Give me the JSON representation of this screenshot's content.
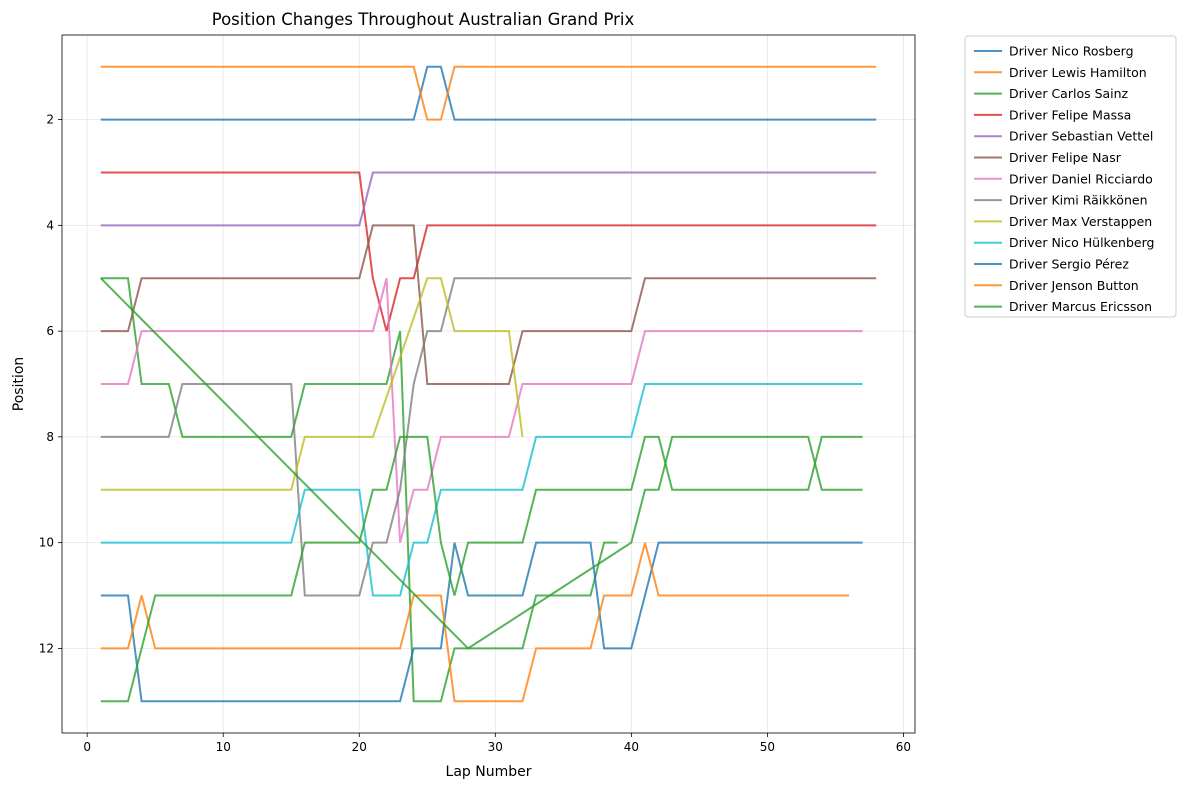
{
  "chart_data": {
    "type": "line",
    "title": "Position Changes Throughout Australian Grand Prix",
    "xlabel": "Lap Number",
    "ylabel": "Position",
    "xlim": [
      -1.85,
      60.85
    ],
    "ylim": [
      13.6,
      0.4
    ],
    "y_inverted": true,
    "xticks": [
      0,
      10,
      20,
      30,
      40,
      50,
      60
    ],
    "yticks": [
      2,
      4,
      6,
      8,
      10,
      12
    ],
    "grid": true,
    "legend_position": "outside-right",
    "series": [
      {
        "name": "Driver Nico Rosberg",
        "color": "#1f77b4",
        "points": [
          [
            1,
            2
          ],
          [
            24,
            2
          ],
          [
            25,
            1
          ],
          [
            26,
            1
          ],
          [
            27,
            2
          ],
          [
            58,
            2
          ]
        ]
      },
      {
        "name": "Driver Lewis Hamilton",
        "color": "#ff7f0e",
        "points": [
          [
            1,
            1
          ],
          [
            24,
            1
          ],
          [
            25,
            2
          ],
          [
            26,
            2
          ],
          [
            27,
            1
          ],
          [
            58,
            1
          ]
        ]
      },
      {
        "name": "Driver Carlos Sainz",
        "color": "#2ca02c",
        "points": [
          [
            1,
            5
          ],
          [
            3,
            5
          ],
          [
            4,
            7
          ],
          [
            6,
            7
          ],
          [
            7,
            8
          ],
          [
            15,
            8
          ],
          [
            16,
            7
          ],
          [
            22,
            7
          ],
          [
            23,
            6
          ],
          [
            24,
            13
          ],
          [
            26,
            13
          ],
          [
            27,
            12
          ],
          [
            28,
            12
          ],
          [
            32,
            12
          ],
          [
            33,
            11
          ],
          [
            37,
            11
          ],
          [
            38,
            10
          ],
          [
            39,
            10
          ]
        ]
      },
      {
        "name": "Driver Felipe Massa",
        "color": "#d62728",
        "points": [
          [
            1,
            3
          ],
          [
            20,
            3
          ],
          [
            21,
            5
          ],
          [
            22,
            6
          ],
          [
            23,
            5
          ],
          [
            24,
            5
          ],
          [
            25,
            4
          ],
          [
            58,
            4
          ]
        ]
      },
      {
        "name": "Driver Sebastian Vettel",
        "color": "#9467bd",
        "points": [
          [
            1,
            4
          ],
          [
            20,
            4
          ],
          [
            21,
            3
          ],
          [
            58,
            3
          ]
        ]
      },
      {
        "name": "Driver Felipe Nasr",
        "color": "#8c564b",
        "points": [
          [
            1,
            6
          ],
          [
            3,
            6
          ],
          [
            4,
            5
          ],
          [
            20,
            5
          ],
          [
            21,
            4
          ],
          [
            24,
            4
          ],
          [
            25,
            7
          ],
          [
            31,
            7
          ],
          [
            32,
            6
          ],
          [
            40,
            6
          ],
          [
            41,
            5
          ],
          [
            58,
            5
          ]
        ]
      },
      {
        "name": "Driver Daniel Ricciardo",
        "color": "#e377c2",
        "points": [
          [
            1,
            7
          ],
          [
            3,
            7
          ],
          [
            4,
            6
          ],
          [
            21,
            6
          ],
          [
            22,
            5
          ],
          [
            23,
            10
          ],
          [
            24,
            9
          ],
          [
            25,
            9
          ],
          [
            26,
            8
          ],
          [
            31,
            8
          ],
          [
            32,
            7
          ],
          [
            40,
            7
          ],
          [
            41,
            6
          ],
          [
            57,
            6
          ]
        ]
      },
      {
        "name": "Driver Kimi Räikkönen",
        "color": "#7f7f7f",
        "points": [
          [
            1,
            8
          ],
          [
            6,
            8
          ],
          [
            7,
            7
          ],
          [
            15,
            7
          ],
          [
            16,
            11
          ],
          [
            20,
            11
          ],
          [
            21,
            10
          ],
          [
            22,
            10
          ],
          [
            23,
            9
          ],
          [
            24,
            7
          ],
          [
            25,
            6
          ],
          [
            26,
            6
          ],
          [
            27,
            5
          ],
          [
            40,
            5
          ]
        ]
      },
      {
        "name": "Driver Max Verstappen",
        "color": "#bcbd22",
        "points": [
          [
            1,
            9
          ],
          [
            15,
            9
          ],
          [
            16,
            8
          ],
          [
            21,
            8
          ],
          [
            25,
            5
          ],
          [
            26,
            5
          ],
          [
            27,
            6
          ],
          [
            31,
            6
          ],
          [
            32,
            8
          ]
        ]
      },
      {
        "name": "Driver Nico Hülkenberg",
        "color": "#17becf",
        "points": [
          [
            1,
            10
          ],
          [
            15,
            10
          ],
          [
            16,
            9
          ],
          [
            20,
            9
          ],
          [
            21,
            11
          ],
          [
            23,
            11
          ],
          [
            24,
            10
          ],
          [
            25,
            10
          ],
          [
            26,
            9
          ],
          [
            32,
            9
          ],
          [
            33,
            8
          ],
          [
            40,
            8
          ],
          [
            41,
            7
          ],
          [
            57,
            7
          ]
        ]
      },
      {
        "name": "Driver Sergio Pérez",
        "color": "#1f77b4",
        "points": [
          [
            1,
            11
          ],
          [
            3,
            11
          ],
          [
            4,
            13
          ],
          [
            23,
            13
          ],
          [
            24,
            12
          ],
          [
            26,
            12
          ],
          [
            27,
            10
          ],
          [
            28,
            11
          ],
          [
            32,
            11
          ],
          [
            33,
            10
          ],
          [
            37,
            10
          ],
          [
            38,
            12
          ],
          [
            40,
            12
          ],
          [
            42,
            10
          ],
          [
            57,
            10
          ]
        ]
      },
      {
        "name": "Driver Jenson Button",
        "color": "#ff7f0e",
        "points": [
          [
            1,
            12
          ],
          [
            3,
            12
          ],
          [
            4,
            11
          ],
          [
            5,
            12
          ],
          [
            23,
            12
          ],
          [
            24,
            11
          ],
          [
            26,
            11
          ],
          [
            27,
            13
          ],
          [
            32,
            13
          ],
          [
            33,
            12
          ],
          [
            37,
            12
          ],
          [
            38,
            11
          ],
          [
            40,
            11
          ],
          [
            41,
            10
          ],
          [
            42,
            11
          ],
          [
            56,
            11
          ]
        ]
      },
      {
        "name": "Driver Marcus Ericsson",
        "color": "#2ca02c",
        "points": [
          [
            1,
            13
          ],
          [
            3,
            13
          ],
          [
            5,
            11
          ],
          [
            15,
            11
          ],
          [
            16,
            10
          ],
          [
            20,
            10
          ],
          [
            21,
            9
          ],
          [
            22,
            9
          ],
          [
            23,
            8
          ],
          [
            25,
            8
          ],
          [
            26,
            10
          ],
          [
            27,
            11
          ],
          [
            28,
            10
          ],
          [
            32,
            10
          ],
          [
            33,
            9
          ],
          [
            40,
            9
          ],
          [
            41,
            8
          ],
          [
            42,
            8
          ],
          [
            43,
            9
          ],
          [
            53,
            9
          ],
          [
            54,
            8
          ],
          [
            57,
            8
          ]
        ]
      },
      {
        "name": "",
        "color": "#2ca02c",
        "points": [
          [
            1,
            5
          ],
          [
            28,
            12
          ],
          [
            40,
            10
          ],
          [
            41,
            9
          ],
          [
            42,
            9
          ],
          [
            43,
            8
          ],
          [
            53,
            8
          ],
          [
            54,
            9
          ],
          [
            57,
            9
          ]
        ]
      }
    ]
  }
}
